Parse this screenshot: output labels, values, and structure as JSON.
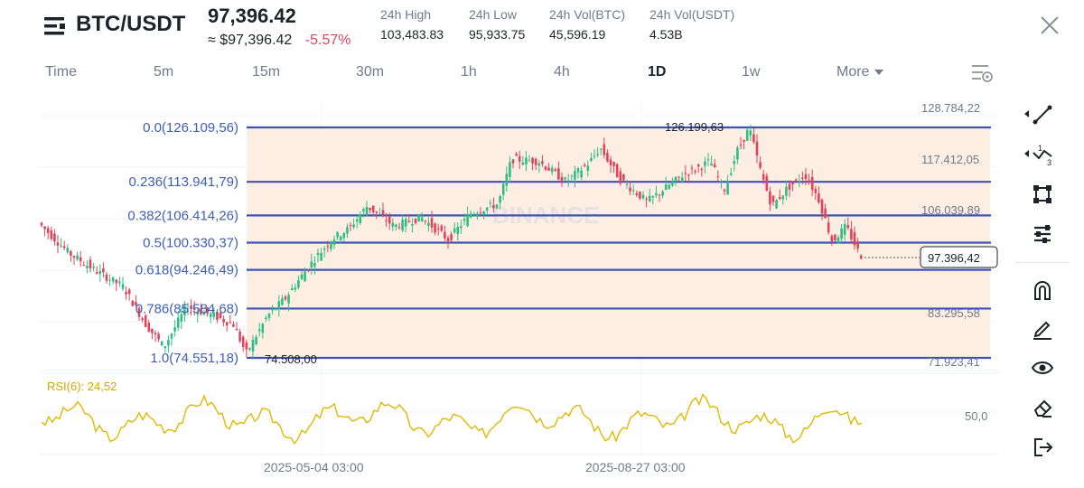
{
  "header": {
    "pair": "BTC/USDT",
    "last_price": "97,396.42",
    "fiat_price": "≈ $97,396.42",
    "change_pct": "-5.57%",
    "stats": [
      {
        "label": "24h High",
        "value": "103,483.83"
      },
      {
        "label": "24h Low",
        "value": "95,933.75"
      },
      {
        "label": "24h Vol(BTC)",
        "value": "45,596.19"
      },
      {
        "label": "24h Vol(USDT)",
        "value": "4.53B"
      }
    ]
  },
  "timeframes": {
    "items": [
      "Time",
      "5m",
      "15m",
      "30m",
      "1h",
      "4h",
      "1D",
      "1w"
    ],
    "active": "1D",
    "more_label": "More"
  },
  "chart": {
    "price_axis_labels": [
      "128.784,22",
      "117.412,05",
      "106.039,89",
      "83.295,58",
      "71.923,41"
    ],
    "current_price_label": "97.396,42",
    "fib_levels": [
      {
        "label": "0.0(126.109,56)",
        "value": 126109.56
      },
      {
        "label": "0.236(113.941,79)",
        "value": 113941.79
      },
      {
        "label": "0.382(106.414,26)",
        "value": 106414.26
      },
      {
        "label": "0.5(100.330,37)",
        "value": 100330.37
      },
      {
        "label": "0.618(94.246,49)",
        "value": 94246.49
      },
      {
        "label": "0.786(85.584,68)",
        "value": 85584.68
      },
      {
        "label": "1.0(74.551,18)",
        "value": 74551.18
      }
    ],
    "high_marker": "126.199,63",
    "low_marker": "74.508,00",
    "watermark": "BINANCE",
    "colors": {
      "up": "#2ebd85",
      "down": "#e0435a",
      "fib_line": "#3f51b5",
      "fib_fill": "#fdeee4",
      "rsi": "#e6b800"
    }
  },
  "rsi": {
    "label": "RSI(6): 24,52",
    "level_label": "50,0"
  },
  "x_axis": {
    "dates": [
      "2025-05-04 03:00",
      "2025-08-27 03:00"
    ]
  },
  "toolbar": {
    "tools": [
      "line-tool",
      "multi-line-tool",
      "shape-tool",
      "fib-tool",
      "magnet-tool",
      "pencil-tool",
      "visibility-tool",
      "eraser-tool",
      "exit-tool"
    ]
  }
}
